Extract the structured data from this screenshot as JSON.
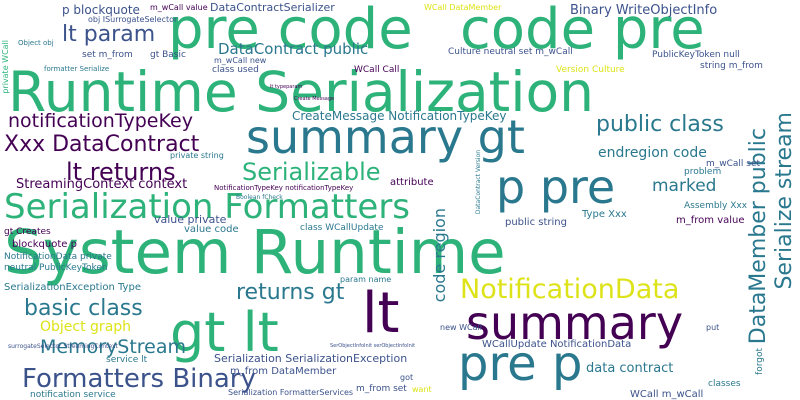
{
  "words": [
    {
      "text": "System Runtime",
      "color": "#2db37a"
    },
    {
      "text": "Runtime Serialization",
      "color": "#2db37a"
    },
    {
      "text": "summary gt",
      "color": "#2a788e"
    },
    {
      "text": "pre code",
      "color": "#2db37a"
    },
    {
      "text": "code pre",
      "color": "#2db37a"
    },
    {
      "text": "summary",
      "color": "#440154"
    },
    {
      "text": "p pre",
      "color": "#2a788e"
    },
    {
      "text": "gt lt",
      "color": "#2db37a"
    },
    {
      "text": "lt",
      "color": "#440154"
    },
    {
      "text": "pre p",
      "color": "#2a788e"
    },
    {
      "text": "Serialization Formatters",
      "color": "#2db37a"
    },
    {
      "text": "NotificationData",
      "color": "#dde318"
    },
    {
      "text": "Formatters Binary",
      "color": "#3b528b"
    },
    {
      "text": "Xxx DataContract",
      "color": "#440154"
    },
    {
      "text": "lt returns",
      "color": "#440154"
    },
    {
      "text": "Serializable",
      "color": "#2db37a"
    },
    {
      "text": "public class",
      "color": "#2a788e"
    },
    {
      "text": "lt param",
      "color": "#3b528b"
    },
    {
      "text": "notificationTypeKey",
      "color": "#440154"
    },
    {
      "text": "basic class",
      "color": "#2a788e"
    },
    {
      "text": "returns gt",
      "color": "#2a788e"
    },
    {
      "text": "MemoryStream",
      "color": "#2a788e"
    },
    {
      "text": "DataMember public",
      "color": "#2a788e"
    },
    {
      "text": "Serialize stream",
      "color": "#2a788e"
    },
    {
      "text": "code region",
      "color": "#2a788e"
    },
    {
      "text": "marked",
      "color": "#2a788e"
    },
    {
      "text": "endregion code",
      "color": "#2a788e"
    },
    {
      "text": "DataContract public",
      "color": "#2a788e"
    },
    {
      "text": "StreamingContext context",
      "color": "#440154"
    },
    {
      "text": "p blockquote",
      "color": "#3b528b"
    },
    {
      "text": "DataContractSerializer",
      "color": "#3b528b"
    },
    {
      "text": "Binary WriteObjectInfo",
      "color": "#3b528b"
    },
    {
      "text": "CreateMessage NotificationTypeKey",
      "color": "#2a788e"
    },
    {
      "text": "Object graph",
      "color": "#dde318"
    },
    {
      "text": "data contract",
      "color": "#2a788e"
    },
    {
      "text": "Serialization SerializationException",
      "color": "#3b528b"
    },
    {
      "text": "SerializationException Type",
      "color": "#2a788e"
    },
    {
      "text": "m_from DataMember",
      "color": "#3b528b"
    },
    {
      "text": "WCall m_wCall",
      "color": "#3b528b"
    },
    {
      "text": "WCallUpdate NotificationData",
      "color": "#3b528b"
    },
    {
      "text": "Serialization FormatterServices",
      "color": "#3b528b"
    },
    {
      "text": "notification service",
      "color": "#2a788e"
    },
    {
      "text": "m_from set",
      "color": "#3b528b"
    },
    {
      "text": "NotificationData private",
      "color": "#2a788e"
    },
    {
      "text": "neutral PublicKeyToken",
      "color": "#2a788e"
    },
    {
      "text": "blockquote p",
      "color": "#440154"
    },
    {
      "text": "gt Creates",
      "color": "#440154"
    },
    {
      "text": "value private",
      "color": "#3b528b"
    },
    {
      "text": "value code",
      "color": "#2a788e"
    },
    {
      "text": "class WCallUpdate",
      "color": "#2a788e"
    },
    {
      "text": "Type Xxx",
      "color": "#2a788e"
    },
    {
      "text": "public string",
      "color": "#3b528b"
    },
    {
      "text": "attribute",
      "color": "#440154"
    },
    {
      "text": "Culture neutral set m_wCall",
      "color": "#3b528b"
    },
    {
      "text": "PublicKeyToken null",
      "color": "#3b528b"
    },
    {
      "text": "string m_from",
      "color": "#3b528b"
    },
    {
      "text": "Version Culture",
      "color": "#dde318"
    },
    {
      "text": "WCall Call",
      "color": "#440154"
    },
    {
      "text": "class used",
      "color": "#3b528b"
    },
    {
      "text": "WCall DataMember",
      "color": "#dde318"
    },
    {
      "text": "m_wCall value",
      "color": "#440154"
    },
    {
      "text": "m_wCall new",
      "color": "#3b528b"
    },
    {
      "text": "set m_from",
      "color": "#3b528b"
    },
    {
      "text": "gt Basic",
      "color": "#3b528b"
    },
    {
      "text": "obj ISurrogateSelector",
      "color": "#3b528b"
    },
    {
      "text": "private string",
      "color": "#2a788e"
    },
    {
      "text": "m_wCall set",
      "color": "#3b528b"
    },
    {
      "text": "problem",
      "color": "#2a788e"
    },
    {
      "text": "Assembly Xxx",
      "color": "#2a788e"
    },
    {
      "text": "m_from value",
      "color": "#440154"
    },
    {
      "text": "param name",
      "color": "#2a788e"
    },
    {
      "text": "service lt",
      "color": "#2a788e"
    },
    {
      "text": "new WCall",
      "color": "#3b528b"
    },
    {
      "text": "classes",
      "color": "#2a788e"
    },
    {
      "text": "forgot",
      "color": "#2a788e"
    },
    {
      "text": "put",
      "color": "#3b528b"
    },
    {
      "text": "got",
      "color": "#3b528b"
    },
    {
      "text": "want",
      "color": "#dde318"
    },
    {
      "text": "formatter Serialize",
      "color": "#2a788e"
    },
    {
      "text": "private WCall",
      "color": "#2db37a"
    },
    {
      "text": "Object obj",
      "color": "#2a788e"
    },
    {
      "text": "NotificationTypeKey notificationTypeKey",
      "color": "#440154"
    },
    {
      "text": "Boolean fCheck",
      "color": "#2a788e"
    },
    {
      "text": "lt typeparam",
      "color": "#440154"
    },
    {
      "text": "Create Message",
      "color": "#440154"
    },
    {
      "text": "surrogateSelector StreamingContext",
      "color": "#3b528b"
    },
    {
      "text": "DataContract Version",
      "color": "#2a788e"
    },
    {
      "text": "SerObjectInfoInit serObjectInfoInit",
      "color": "#3b528b"
    }
  ]
}
